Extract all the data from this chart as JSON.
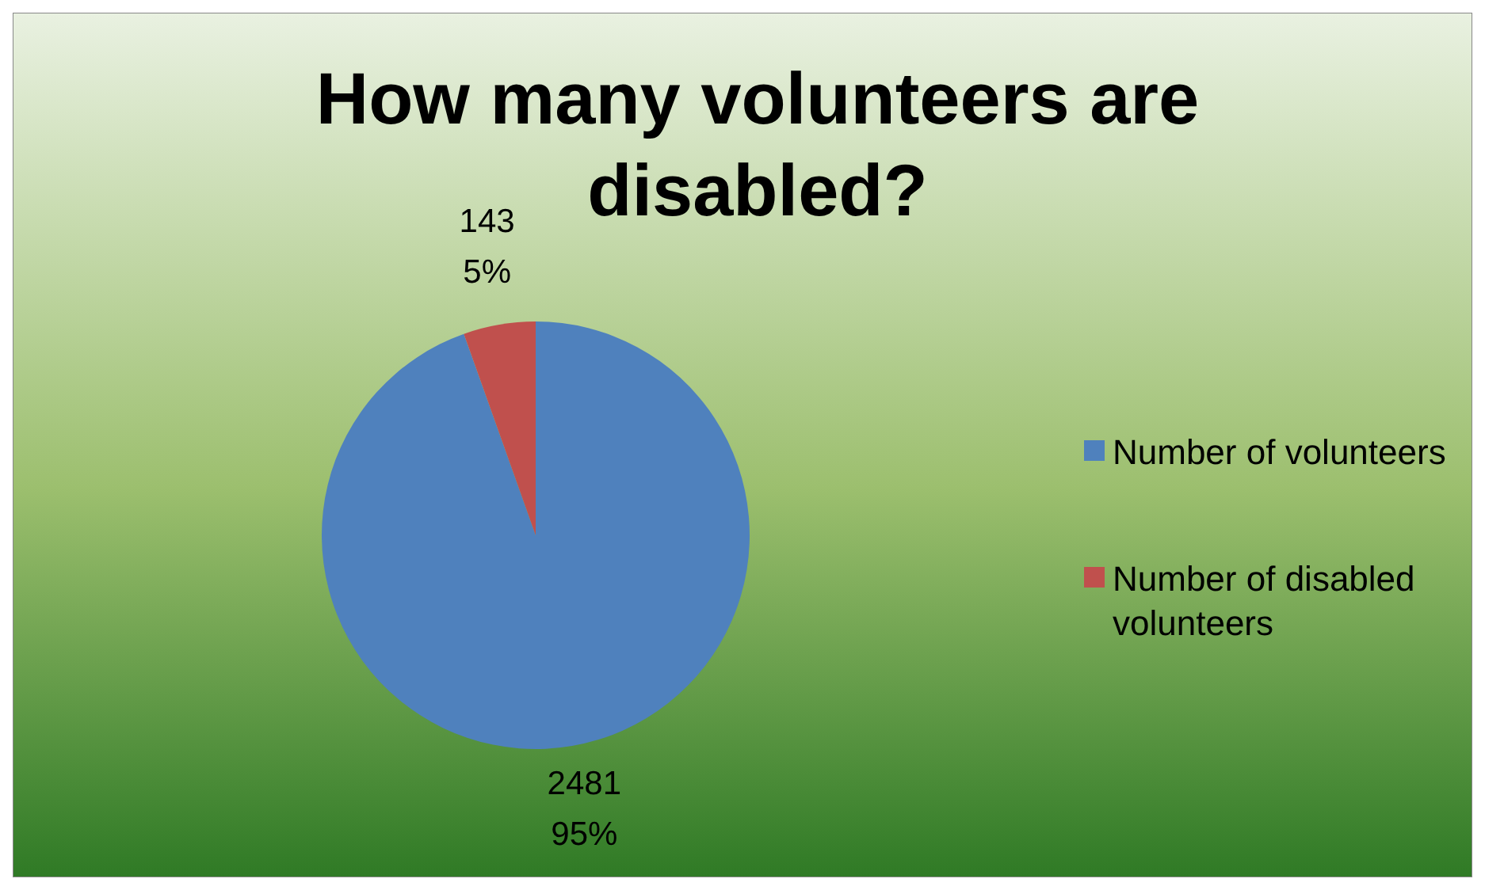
{
  "chart_data": {
    "type": "pie",
    "title": "How many volunteers are disabled?",
    "categories": [
      "Number of volunteers",
      "Number of disabled volunteers"
    ],
    "values": [
      2481,
      143
    ],
    "colors": [
      "#4f81bd",
      "#c0504d"
    ],
    "value_labels": [
      "2481\n95%",
      "143\n5%"
    ],
    "legend": "right"
  }
}
